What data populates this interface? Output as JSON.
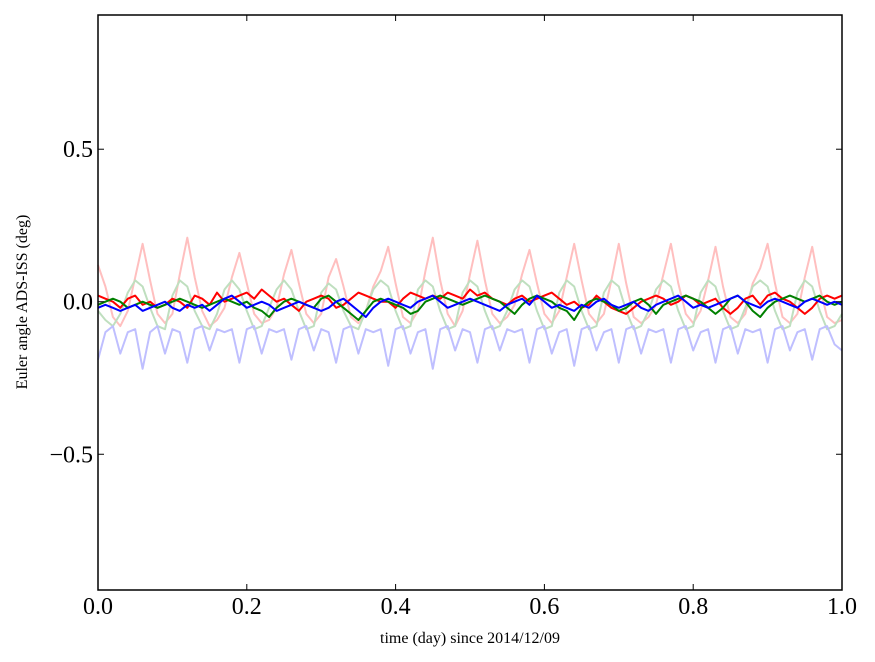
{
  "chart_data": {
    "type": "line",
    "title": "",
    "xlabel": "time (day) since 2014/12/09",
    "ylabel": "Euler angle ADS-ISS (deg)",
    "xlim": [
      0,
      1
    ],
    "ylim": [
      -0.945,
      0.94
    ],
    "x_range": [
      0,
      1
    ],
    "grid": false,
    "xticks": [
      {
        "value": 0.0,
        "label": "0.0"
      },
      {
        "value": 0.2,
        "label": "0.2"
      },
      {
        "value": 0.4,
        "label": "0.4"
      },
      {
        "value": 0.6,
        "label": "0.6"
      },
      {
        "value": 0.8,
        "label": "0.8"
      },
      {
        "value": 1.0,
        "label": "1.0"
      }
    ],
    "yticks": [
      {
        "value": 0.5,
        "label": "0.5"
      },
      {
        "value": 0.0,
        "label": "0.0"
      },
      {
        "value": -0.5,
        "label": "−0.5"
      }
    ],
    "series": [
      {
        "color": "#ffbfbf",
        "values": [
          0.12,
          0.05,
          -0.05,
          -0.08,
          -0.03,
          0.08,
          0.19,
          0.07,
          -0.04,
          -0.07,
          -0.04,
          0.09,
          0.21,
          0.08,
          -0.03,
          -0.08,
          -0.06,
          -0.02,
          0.08,
          0.16,
          0.06,
          -0.04,
          -0.07,
          -0.06,
          -0.02,
          0.09,
          0.17,
          0.06,
          -0.04,
          -0.07,
          -0.04,
          0.08,
          0.14,
          0.05,
          -0.05,
          -0.07,
          -0.03,
          0.05,
          0.1,
          0.18,
          0.06,
          -0.05,
          -0.07,
          -0.03,
          0.1,
          0.21,
          0.07,
          -0.04,
          -0.08,
          -0.03,
          0.09,
          0.2,
          0.07,
          -0.04,
          -0.07,
          -0.05,
          -0.01,
          0.09,
          0.17,
          0.06,
          -0.04,
          -0.07,
          -0.03,
          0.08,
          0.19,
          0.07,
          -0.04,
          -0.07,
          -0.04,
          0.07,
          0.19,
          0.06,
          -0.05,
          -0.07,
          -0.05,
          -0.01,
          0.09,
          0.19,
          0.06,
          -0.04,
          -0.07,
          -0.03,
          0.07,
          0.18,
          0.05,
          -0.05,
          -0.07,
          -0.04,
          0.06,
          0.11,
          0.19,
          0.06,
          -0.05,
          -0.07,
          -0.04,
          0.08,
          0.18,
          0.05,
          -0.05,
          -0.07,
          -0.06
        ]
      },
      {
        "color": "#bfdfbf",
        "values": [
          -0.03,
          -0.06,
          -0.08,
          -0.04,
          0.03,
          0.07,
          0.05,
          -0.02,
          -0.08,
          -0.09,
          0.02,
          0.07,
          0.05,
          -0.03,
          -0.08,
          -0.09,
          -0.04,
          0.04,
          0.07,
          0.04,
          -0.03,
          -0.09,
          -0.08,
          -0.02,
          0.04,
          0.07,
          0.04,
          -0.03,
          -0.09,
          -0.08,
          0.03,
          0.06,
          0.04,
          -0.03,
          -0.08,
          -0.09,
          -0.03,
          0.04,
          0.07,
          0.05,
          -0.03,
          -0.09,
          -0.08,
          0.04,
          0.07,
          0.05,
          -0.03,
          -0.09,
          -0.08,
          0.03,
          0.07,
          0.05,
          -0.03,
          -0.09,
          -0.08,
          -0.03,
          0.04,
          0.07,
          0.05,
          -0.03,
          -0.09,
          -0.08,
          0.03,
          0.07,
          0.05,
          -0.03,
          -0.09,
          -0.08,
          0.03,
          0.07,
          0.05,
          -0.03,
          -0.09,
          -0.08,
          -0.03,
          0.04,
          0.07,
          0.05,
          -0.03,
          -0.09,
          -0.08,
          0.03,
          0.07,
          0.05,
          -0.03,
          -0.09,
          -0.08,
          -0.02,
          0.05,
          0.07,
          0.05,
          -0.03,
          -0.09,
          -0.08,
          0.03,
          0.07,
          0.05,
          -0.03,
          -0.09,
          -0.08,
          -0.04
        ]
      },
      {
        "color": "#bfbfff",
        "values": [
          -0.19,
          -0.1,
          -0.08,
          -0.17,
          -0.1,
          -0.09,
          -0.22,
          -0.1,
          -0.08,
          -0.17,
          -0.09,
          -0.1,
          -0.2,
          -0.09,
          -0.08,
          -0.16,
          -0.09,
          -0.1,
          -0.09,
          -0.2,
          -0.09,
          -0.08,
          -0.17,
          -0.09,
          -0.1,
          -0.09,
          -0.19,
          -0.09,
          -0.08,
          -0.16,
          -0.09,
          -0.1,
          -0.2,
          -0.09,
          -0.08,
          -0.17,
          -0.09,
          -0.1,
          -0.09,
          -0.21,
          -0.09,
          -0.08,
          -0.17,
          -0.1,
          -0.09,
          -0.22,
          -0.09,
          -0.08,
          -0.16,
          -0.09,
          -0.1,
          -0.2,
          -0.09,
          -0.08,
          -0.16,
          -0.09,
          -0.1,
          -0.09,
          -0.2,
          -0.09,
          -0.08,
          -0.17,
          -0.1,
          -0.09,
          -0.21,
          -0.09,
          -0.08,
          -0.16,
          -0.1,
          -0.09,
          -0.2,
          -0.09,
          -0.08,
          -0.17,
          -0.09,
          -0.1,
          -0.09,
          -0.2,
          -0.09,
          -0.08,
          -0.16,
          -0.1,
          -0.09,
          -0.2,
          -0.09,
          -0.08,
          -0.17,
          -0.09,
          -0.1,
          -0.09,
          -0.2,
          -0.09,
          -0.08,
          -0.16,
          -0.1,
          -0.09,
          -0.19,
          -0.09,
          -0.08,
          -0.14,
          -0.16
        ]
      },
      {
        "color": "#ff0000",
        "values": [
          0.02,
          0.01,
          0,
          -0.02,
          0.01,
          0.02,
          -0.01,
          0,
          -0.02,
          -0.01,
          0.01,
          0,
          -0.02,
          0.02,
          0.01,
          -0.01,
          0.03,
          0,
          0.01,
          0.02,
          0.03,
          0.01,
          0.04,
          0.02,
          0,
          0.01,
          -0.01,
          -0.03,
          0,
          0.01,
          0.02,
          0.01,
          -0.02,
          -0.01,
          0.01,
          0.03,
          0.02,
          0.01,
          0,
          0,
          -0.02,
          0.01,
          0.03,
          0.02,
          0.01,
          0.02,
          0.01,
          0.03,
          0.02,
          0.01,
          0.04,
          0.02,
          0.03,
          0.01,
          0,
          -0.01,
          0.01,
          0.02,
          0,
          0.01,
          0.02,
          0.03,
          0.01,
          -0.01,
          0,
          -0.02,
          -0.01,
          0.02,
          0,
          -0.02,
          -0.03,
          -0.04,
          -0.02,
          0,
          0.01,
          0.02,
          0.01,
          -0.01,
          0,
          0.02,
          0.01,
          -0.01,
          0,
          0.01,
          -0.02,
          -0.04,
          -0.02,
          0.01,
          0.02,
          -0.01,
          0.02,
          0.03,
          0.01,
          0,
          -0.02,
          -0.04,
          -0.02,
          0.01,
          0.02,
          0.01,
          0.02
        ]
      },
      {
        "color": "#008000",
        "values": [
          -0.01,
          0,
          0.01,
          0,
          -0.02,
          -0.01,
          0,
          -0.01,
          -0.02,
          -0.01,
          0,
          0.01,
          0,
          -0.01,
          -0.02,
          -0.01,
          0,
          0.01,
          0,
          -0.01,
          0,
          -0.02,
          -0.03,
          -0.05,
          -0.02,
          0,
          0.01,
          0,
          -0.01,
          -0.02,
          0.01,
          0.02,
          0,
          -0.02,
          -0.04,
          -0.06,
          -0.03,
          0,
          0.01,
          0,
          -0.01,
          -0.02,
          -0.04,
          -0.03,
          0,
          0.01,
          0.02,
          0.01,
          0,
          -0.01,
          0,
          0.01,
          0.02,
          0.01,
          0,
          -0.02,
          -0.04,
          -0.01,
          0.01,
          0.02,
          0.01,
          0,
          -0.02,
          -0.03,
          -0.06,
          -0.02,
          0,
          0.01,
          0,
          -0.01,
          -0.03,
          -0.02,
          0,
          0.01,
          -0.01,
          -0.04,
          -0.01,
          0,
          0.01,
          0.02,
          0.01,
          0,
          -0.02,
          -0.04,
          -0.02,
          0.01,
          0.02,
          0,
          -0.03,
          -0.05,
          -0.02,
          0,
          0.01,
          0.02,
          0.01,
          0,
          0.01,
          0.02,
          0,
          -0.01,
          0
        ]
      },
      {
        "color": "#0000ff",
        "values": [
          -0.02,
          -0.01,
          -0.02,
          -0.03,
          -0.02,
          -0.01,
          -0.03,
          -0.02,
          -0.01,
          0,
          -0.02,
          -0.03,
          -0.01,
          -0.02,
          -0.01,
          -0.03,
          -0.01,
          0.01,
          0.02,
          0,
          -0.02,
          -0.01,
          0,
          -0.01,
          -0.03,
          -0.02,
          -0.01,
          0,
          -0.01,
          -0.02,
          -0.03,
          -0.02,
          0,
          0.01,
          -0.01,
          -0.03,
          -0.05,
          -0.02,
          0,
          0.01,
          0,
          -0.01,
          -0.02,
          0,
          0.01,
          0.02,
          0,
          -0.02,
          -0.01,
          0,
          0.01,
          0,
          -0.01,
          -0.02,
          -0.03,
          -0.01,
          0,
          0.01,
          -0.01,
          0.02,
          0,
          -0.02,
          -0.01,
          -0.02,
          -0.03,
          -0.01,
          -0.02,
          0,
          0.01,
          -0.01,
          -0.02,
          -0.01,
          0,
          -0.02,
          -0.03,
          -0.01,
          0,
          0.01,
          0.02,
          0,
          -0.02,
          -0.01,
          -0.02,
          -0.01,
          0,
          0.01,
          0.02,
          0,
          -0.01,
          -0.02,
          0,
          0.01,
          0,
          -0.01,
          -0.02,
          0,
          0.01,
          0,
          -0.01,
          0,
          -0.01
        ]
      }
    ]
  }
}
